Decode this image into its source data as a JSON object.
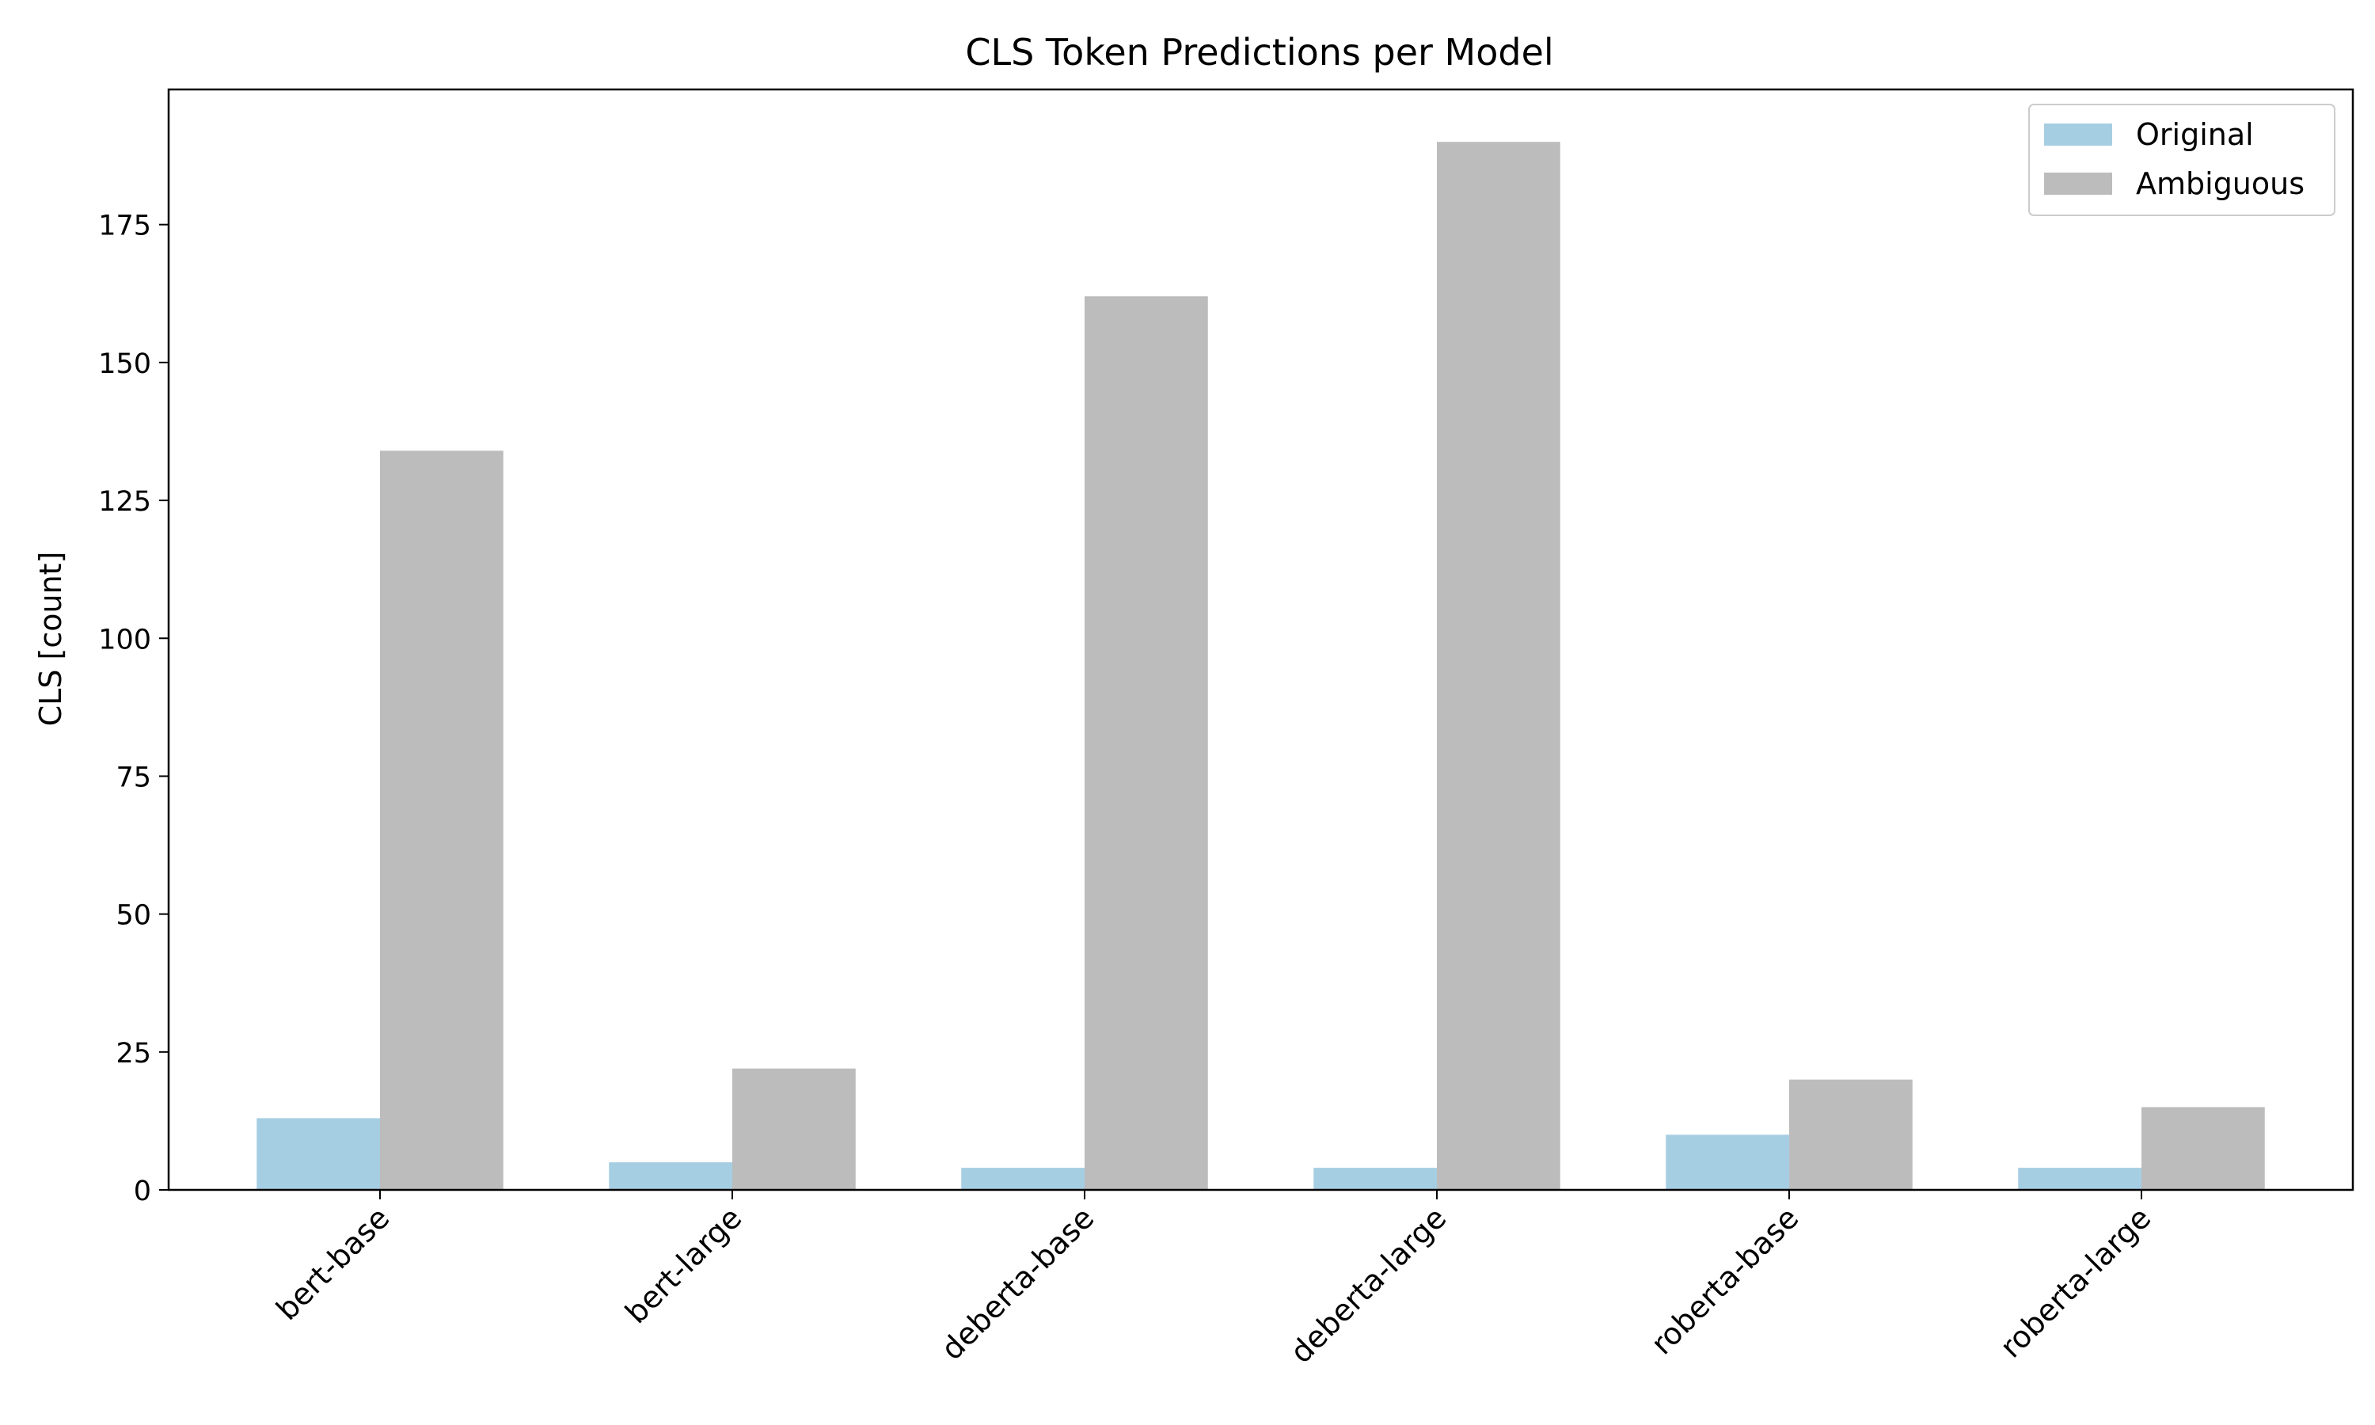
{
  "chart_data": {
    "type": "bar",
    "title": "CLS Token Predictions per Model",
    "xlabel": "",
    "ylabel": "CLS [count]",
    "categories": [
      "bert-base",
      "bert-large",
      "deberta-base",
      "deberta-large",
      "roberta-base",
      "roberta-large"
    ],
    "series": [
      {
        "name": "Original",
        "color": "#a6cee3",
        "values": [
          13,
          5,
          4,
          4,
          10,
          4
        ]
      },
      {
        "name": "Ambiguous",
        "color": "#bcbcbc",
        "values": [
          134,
          22,
          162,
          190,
          20,
          15
        ]
      }
    ],
    "ylim": [
      0,
      199.5
    ],
    "yticks": [
      0,
      25,
      50,
      75,
      100,
      125,
      150,
      175
    ],
    "grid": false,
    "legend": "top-right"
  }
}
